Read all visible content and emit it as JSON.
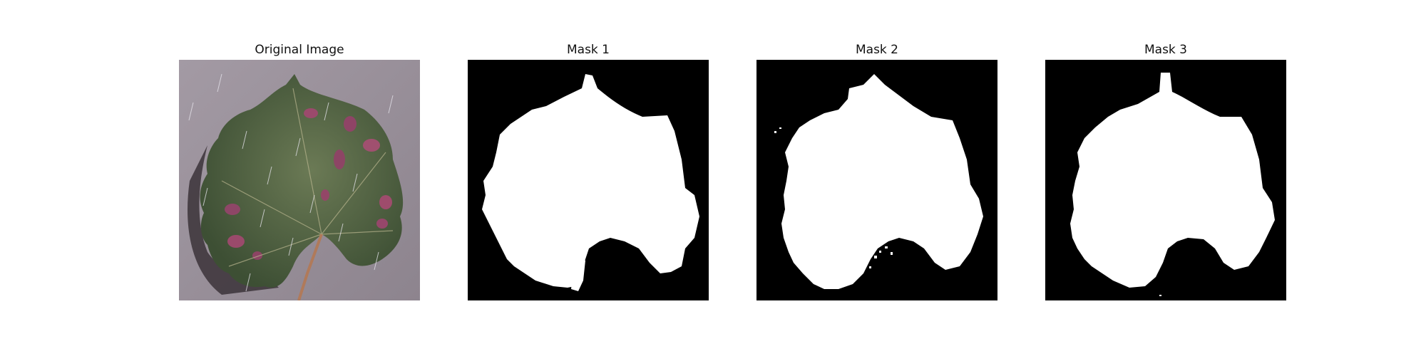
{
  "figure": {
    "panels": [
      {
        "title": "Original Image",
        "content": "photo of a grape leaf with pink disease spots on a grey surface"
      },
      {
        "title": "Mask 1",
        "content": "binary segmentation mask"
      },
      {
        "title": "Mask 2",
        "content": "binary segmentation mask"
      },
      {
        "title": "Mask 3",
        "content": "binary segmentation mask"
      }
    ]
  },
  "colors": {
    "background": "#9a909a",
    "leaf": "#4c5f3e",
    "spots": "#9b4a6c",
    "mask_bg": "#000000",
    "mask_fg": "#ffffff"
  }
}
